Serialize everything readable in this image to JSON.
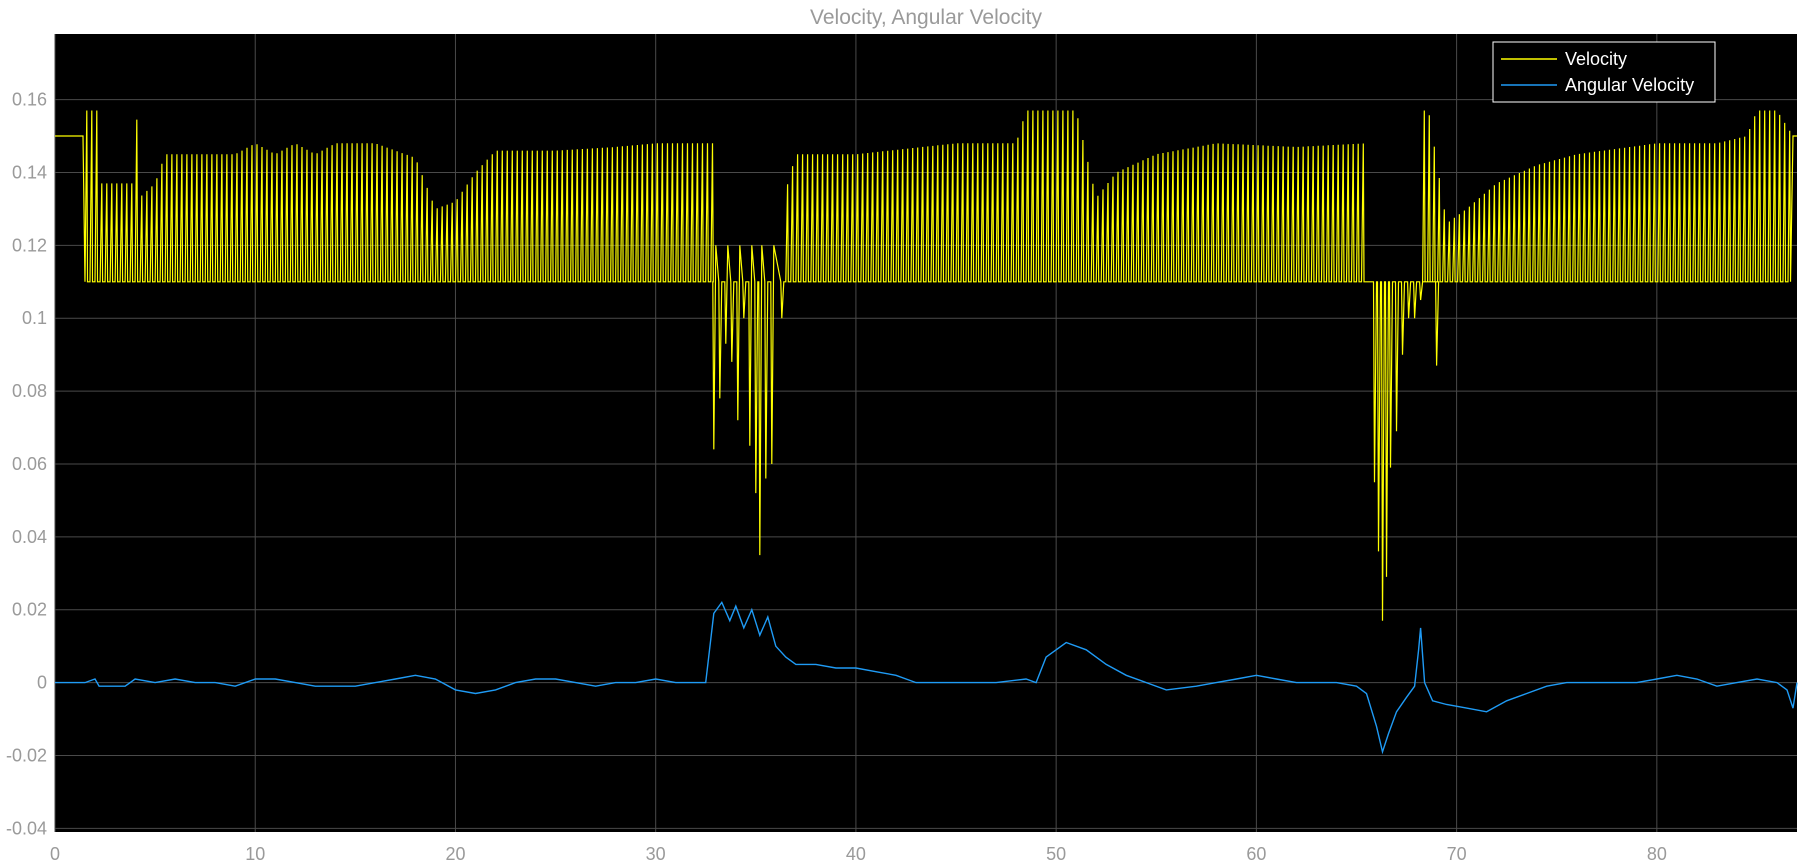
{
  "chart_data": {
    "type": "line",
    "title": "Velocity, Angular Velocity",
    "xlabel": "",
    "ylabel": "",
    "xlim": [
      0,
      87
    ],
    "ylim": [
      -0.041,
      0.178
    ],
    "xticks": [
      0,
      10,
      20,
      30,
      40,
      50,
      60,
      70,
      80
    ],
    "xtick_labels": [
      "0",
      "10",
      "20",
      "30",
      "40",
      "50",
      "60",
      "70",
      "80"
    ],
    "yticks": [
      -0.04,
      -0.02,
      0,
      0.02,
      0.04,
      0.06,
      0.08,
      0.1,
      0.12,
      0.14,
      0.16
    ],
    "ytick_labels": [
      "-0.04",
      "-0.02",
      "0",
      "0.02",
      "0.04",
      "0.06",
      "0.08",
      "0.1",
      "0.12",
      "0.14",
      "0.16"
    ],
    "grid": true,
    "background": "#000000",
    "legend_position": "top-right",
    "series": [
      {
        "name": "Velocity",
        "color": "#ffff00",
        "style": "oscillating",
        "low": 0.11,
        "envelope": [
          [
            0,
            0.15
          ],
          [
            1.4,
            0.15
          ],
          [
            1.5,
            0.157
          ],
          [
            2.1,
            0.157
          ],
          [
            2.2,
            0.137
          ],
          [
            4.0,
            0.137
          ],
          [
            4.1,
            0.157
          ],
          [
            4.2,
            0.133
          ],
          [
            5.0,
            0.137
          ],
          [
            5.5,
            0.145
          ],
          [
            9.0,
            0.145
          ],
          [
            10.0,
            0.148
          ],
          [
            11.0,
            0.145
          ],
          [
            12.0,
            0.148
          ],
          [
            13.0,
            0.145
          ],
          [
            14.0,
            0.148
          ],
          [
            16.0,
            0.148
          ],
          [
            18.0,
            0.144
          ],
          [
            19.0,
            0.13
          ],
          [
            20.0,
            0.132
          ],
          [
            21.0,
            0.14
          ],
          [
            22.0,
            0.146
          ],
          [
            25.0,
            0.146
          ],
          [
            28.0,
            0.147
          ],
          [
            30.0,
            0.148
          ],
          [
            32.8,
            0.148
          ]
        ],
        "drops": [
          [
            32.9,
            0.064
          ],
          [
            33.2,
            0.078
          ],
          [
            33.5,
            0.093
          ],
          [
            33.8,
            0.088
          ],
          [
            34.1,
            0.072
          ],
          [
            34.4,
            0.1
          ],
          [
            34.7,
            0.065
          ],
          [
            35.0,
            0.052
          ],
          [
            35.2,
            0.035
          ],
          [
            35.5,
            0.056
          ],
          [
            35.8,
            0.06
          ],
          [
            36.3,
            0.1
          ]
        ],
        "envelope2": [
          [
            36.5,
            0.135
          ],
          [
            37.0,
            0.145
          ],
          [
            40.0,
            0.145
          ],
          [
            45.0,
            0.148
          ],
          [
            48.0,
            0.148
          ],
          [
            48.5,
            0.157
          ],
          [
            50.0,
            0.157
          ],
          [
            51.0,
            0.157
          ],
          [
            52.0,
            0.133
          ],
          [
            53.0,
            0.14
          ],
          [
            55.0,
            0.145
          ],
          [
            58.0,
            0.148
          ],
          [
            62.0,
            0.147
          ],
          [
            65.5,
            0.148
          ]
        ],
        "drops2": [
          [
            65.9,
            0.055
          ],
          [
            66.1,
            0.036
          ],
          [
            66.3,
            0.017
          ],
          [
            66.5,
            0.029
          ],
          [
            66.7,
            0.059
          ],
          [
            67.0,
            0.069
          ],
          [
            67.3,
            0.09
          ],
          [
            67.6,
            0.1
          ],
          [
            67.9,
            0.1
          ],
          [
            68.2,
            0.105
          ],
          [
            69.0,
            0.087
          ]
        ],
        "envelope3": [
          [
            68.3,
            0.157
          ],
          [
            68.6,
            0.157
          ],
          [
            69.5,
            0.126
          ],
          [
            70.5,
            0.13
          ],
          [
            72.0,
            0.137
          ],
          [
            74.0,
            0.142
          ],
          [
            76.0,
            0.145
          ],
          [
            80.0,
            0.148
          ],
          [
            83.0,
            0.148
          ],
          [
            84.5,
            0.15
          ],
          [
            85.0,
            0.157
          ],
          [
            86.0,
            0.157
          ],
          [
            86.8,
            0.15
          ],
          [
            87.0,
            0.15
          ]
        ]
      },
      {
        "name": "Angular Velocity",
        "color": "#1f9bf5",
        "style": "line",
        "points": [
          [
            0,
            0.0
          ],
          [
            1.5,
            0.0
          ],
          [
            2.0,
            0.001
          ],
          [
            2.2,
            -0.001
          ],
          [
            3.5,
            -0.001
          ],
          [
            4.0,
            0.001
          ],
          [
            5.0,
            0.0
          ],
          [
            6.0,
            0.001
          ],
          [
            7.0,
            0.0
          ],
          [
            8.0,
            0.0
          ],
          [
            9.0,
            -0.001
          ],
          [
            10.0,
            0.001
          ],
          [
            11.0,
            0.001
          ],
          [
            12.0,
            0.0
          ],
          [
            13.0,
            -0.001
          ],
          [
            15.0,
            -0.001
          ],
          [
            16.0,
            0.0
          ],
          [
            17.0,
            0.001
          ],
          [
            18.0,
            0.002
          ],
          [
            19.0,
            0.001
          ],
          [
            20.0,
            -0.002
          ],
          [
            21.0,
            -0.003
          ],
          [
            22.0,
            -0.002
          ],
          [
            23.0,
            0.0
          ],
          [
            24.0,
            0.001
          ],
          [
            25.0,
            0.001
          ],
          [
            26.0,
            0.0
          ],
          [
            27.0,
            -0.001
          ],
          [
            28.0,
            0.0
          ],
          [
            29.0,
            0.0
          ],
          [
            30.0,
            0.001
          ],
          [
            31.0,
            0.0
          ],
          [
            32.5,
            0.0
          ],
          [
            32.9,
            0.019
          ],
          [
            33.3,
            0.022
          ],
          [
            33.7,
            0.017
          ],
          [
            34.0,
            0.021
          ],
          [
            34.4,
            0.015
          ],
          [
            34.8,
            0.02
          ],
          [
            35.2,
            0.013
          ],
          [
            35.6,
            0.018
          ],
          [
            36.0,
            0.01
          ],
          [
            36.5,
            0.007
          ],
          [
            37.0,
            0.005
          ],
          [
            38.0,
            0.005
          ],
          [
            39.0,
            0.004
          ],
          [
            40.0,
            0.004
          ],
          [
            41.0,
            0.003
          ],
          [
            42.0,
            0.002
          ],
          [
            43.0,
            0.0
          ],
          [
            45.0,
            0.0
          ],
          [
            47.0,
            0.0
          ],
          [
            48.5,
            0.001
          ],
          [
            49.0,
            0.0
          ],
          [
            49.5,
            0.007
          ],
          [
            50.5,
            0.011
          ],
          [
            51.5,
            0.009
          ],
          [
            52.5,
            0.005
          ],
          [
            53.5,
            0.002
          ],
          [
            54.5,
            0.0
          ],
          [
            55.5,
            -0.002
          ],
          [
            57.0,
            -0.001
          ],
          [
            58.0,
            0.0
          ],
          [
            59.0,
            0.001
          ],
          [
            60.0,
            0.002
          ],
          [
            61.0,
            0.001
          ],
          [
            62.0,
            0.0
          ],
          [
            64.0,
            0.0
          ],
          [
            65.0,
            -0.001
          ],
          [
            65.5,
            -0.003
          ],
          [
            66.0,
            -0.012
          ],
          [
            66.3,
            -0.019
          ],
          [
            66.6,
            -0.014
          ],
          [
            67.0,
            -0.008
          ],
          [
            67.5,
            -0.004
          ],
          [
            67.9,
            -0.001
          ],
          [
            68.1,
            0.009
          ],
          [
            68.2,
            0.015
          ],
          [
            68.4,
            0.0
          ],
          [
            68.8,
            -0.005
          ],
          [
            69.5,
            -0.006
          ],
          [
            70.5,
            -0.007
          ],
          [
            71.5,
            -0.008
          ],
          [
            72.5,
            -0.005
          ],
          [
            73.5,
            -0.003
          ],
          [
            74.5,
            -0.001
          ],
          [
            75.5,
            0.0
          ],
          [
            77.0,
            0.0
          ],
          [
            79.0,
            0.0
          ],
          [
            80.0,
            0.001
          ],
          [
            81.0,
            0.002
          ],
          [
            82.0,
            0.001
          ],
          [
            83.0,
            -0.001
          ],
          [
            84.0,
            0.0
          ],
          [
            85.0,
            0.001
          ],
          [
            86.0,
            0.0
          ],
          [
            86.5,
            -0.002
          ],
          [
            86.8,
            -0.007
          ],
          [
            87.0,
            0.0
          ]
        ]
      }
    ]
  }
}
